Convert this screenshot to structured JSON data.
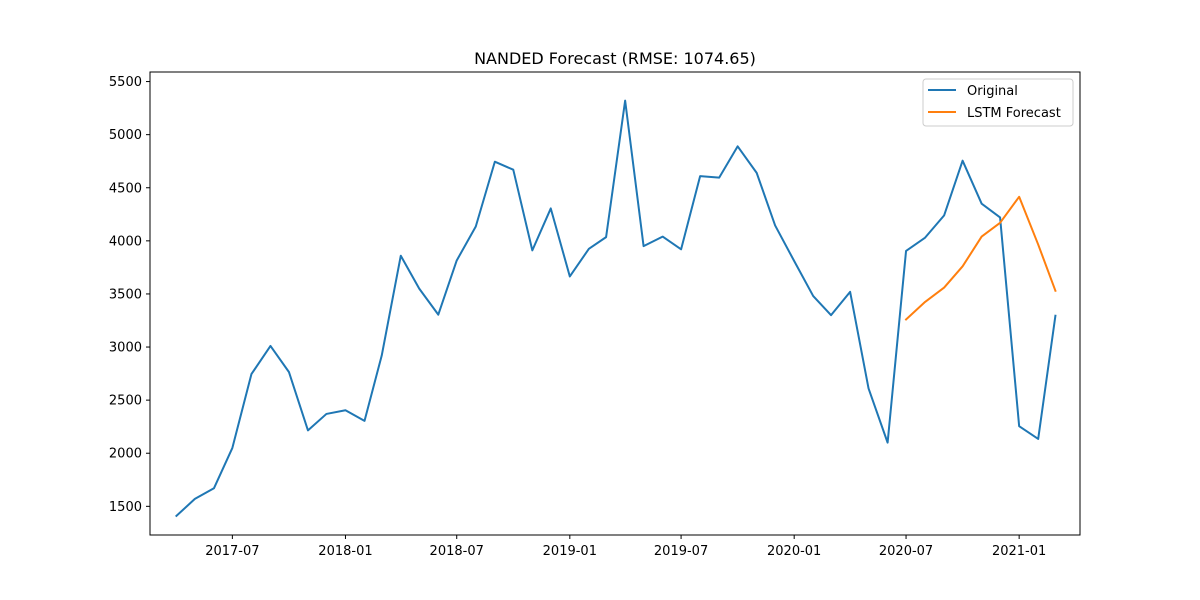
{
  "chart_data": {
    "type": "line",
    "title": "NANDED Forecast (RMSE: 1074.65)",
    "xlabel": "",
    "ylabel": "",
    "x_tick_labels": [
      "2017-07",
      "2018-01",
      "2018-07",
      "2019-01",
      "2019-07",
      "2020-01",
      "2020-07",
      "2021-01"
    ],
    "y_ticks": [
      1500,
      2000,
      2500,
      3000,
      3500,
      4000,
      4500,
      5000,
      5500
    ],
    "xlim": [
      "2017-02-17",
      "2021-04-10"
    ],
    "ylim": [
      1230,
      5590
    ],
    "grid": false,
    "legend_position": "top-right",
    "series": [
      {
        "name": "Original",
        "color": "#1f77b4",
        "points": [
          [
            "2017-04-01",
            1410
          ],
          [
            "2017-05-01",
            1570
          ],
          [
            "2017-06-01",
            1670
          ],
          [
            "2017-07-01",
            2050
          ],
          [
            "2017-08-01",
            2745
          ],
          [
            "2017-09-01",
            3010
          ],
          [
            "2017-10-01",
            2765
          ],
          [
            "2017-11-01",
            2215
          ],
          [
            "2017-12-01",
            2370
          ],
          [
            "2018-01-01",
            2405
          ],
          [
            "2018-02-01",
            2305
          ],
          [
            "2018-03-01",
            2920
          ],
          [
            "2018-04-01",
            3860
          ],
          [
            "2018-05-01",
            3550
          ],
          [
            "2018-06-01",
            3305
          ],
          [
            "2018-07-01",
            3815
          ],
          [
            "2018-08-01",
            4135
          ],
          [
            "2018-09-01",
            4745
          ],
          [
            "2018-10-01",
            4670
          ],
          [
            "2018-11-01",
            3910
          ],
          [
            "2018-12-01",
            4305
          ],
          [
            "2019-01-01",
            3665
          ],
          [
            "2019-02-01",
            3925
          ],
          [
            "2019-03-01",
            4035
          ],
          [
            "2019-04-01",
            5320
          ],
          [
            "2019-05-01",
            3950
          ],
          [
            "2019-06-01",
            4040
          ],
          [
            "2019-07-01",
            3920
          ],
          [
            "2019-08-01",
            4610
          ],
          [
            "2019-09-01",
            4595
          ],
          [
            "2019-10-01",
            4890
          ],
          [
            "2019-11-01",
            4640
          ],
          [
            "2019-12-01",
            4145
          ],
          [
            "2020-01-01",
            3810
          ],
          [
            "2020-02-01",
            3480
          ],
          [
            "2020-03-01",
            3300
          ],
          [
            "2020-04-01",
            3520
          ],
          [
            "2020-05-01",
            2610
          ],
          [
            "2020-06-01",
            2100
          ],
          [
            "2020-07-01",
            3905
          ],
          [
            "2020-08-01",
            4030
          ],
          [
            "2020-09-01",
            4240
          ],
          [
            "2020-10-01",
            4755
          ],
          [
            "2020-11-01",
            4350
          ],
          [
            "2020-12-01",
            4220
          ],
          [
            "2021-01-01",
            2255
          ],
          [
            "2021-02-01",
            2135
          ],
          [
            "2021-03-01",
            3295
          ]
        ]
      },
      {
        "name": "LSTM Forecast",
        "color": "#ff7f0e",
        "points": [
          [
            "2020-07-01",
            3260
          ],
          [
            "2020-08-01",
            3425
          ],
          [
            "2020-09-01",
            3560
          ],
          [
            "2020-10-01",
            3760
          ],
          [
            "2020-11-01",
            4040
          ],
          [
            "2020-12-01",
            4170
          ],
          [
            "2021-01-01",
            4415
          ],
          [
            "2021-02-01",
            3965
          ],
          [
            "2021-03-01",
            3530
          ]
        ]
      }
    ]
  }
}
